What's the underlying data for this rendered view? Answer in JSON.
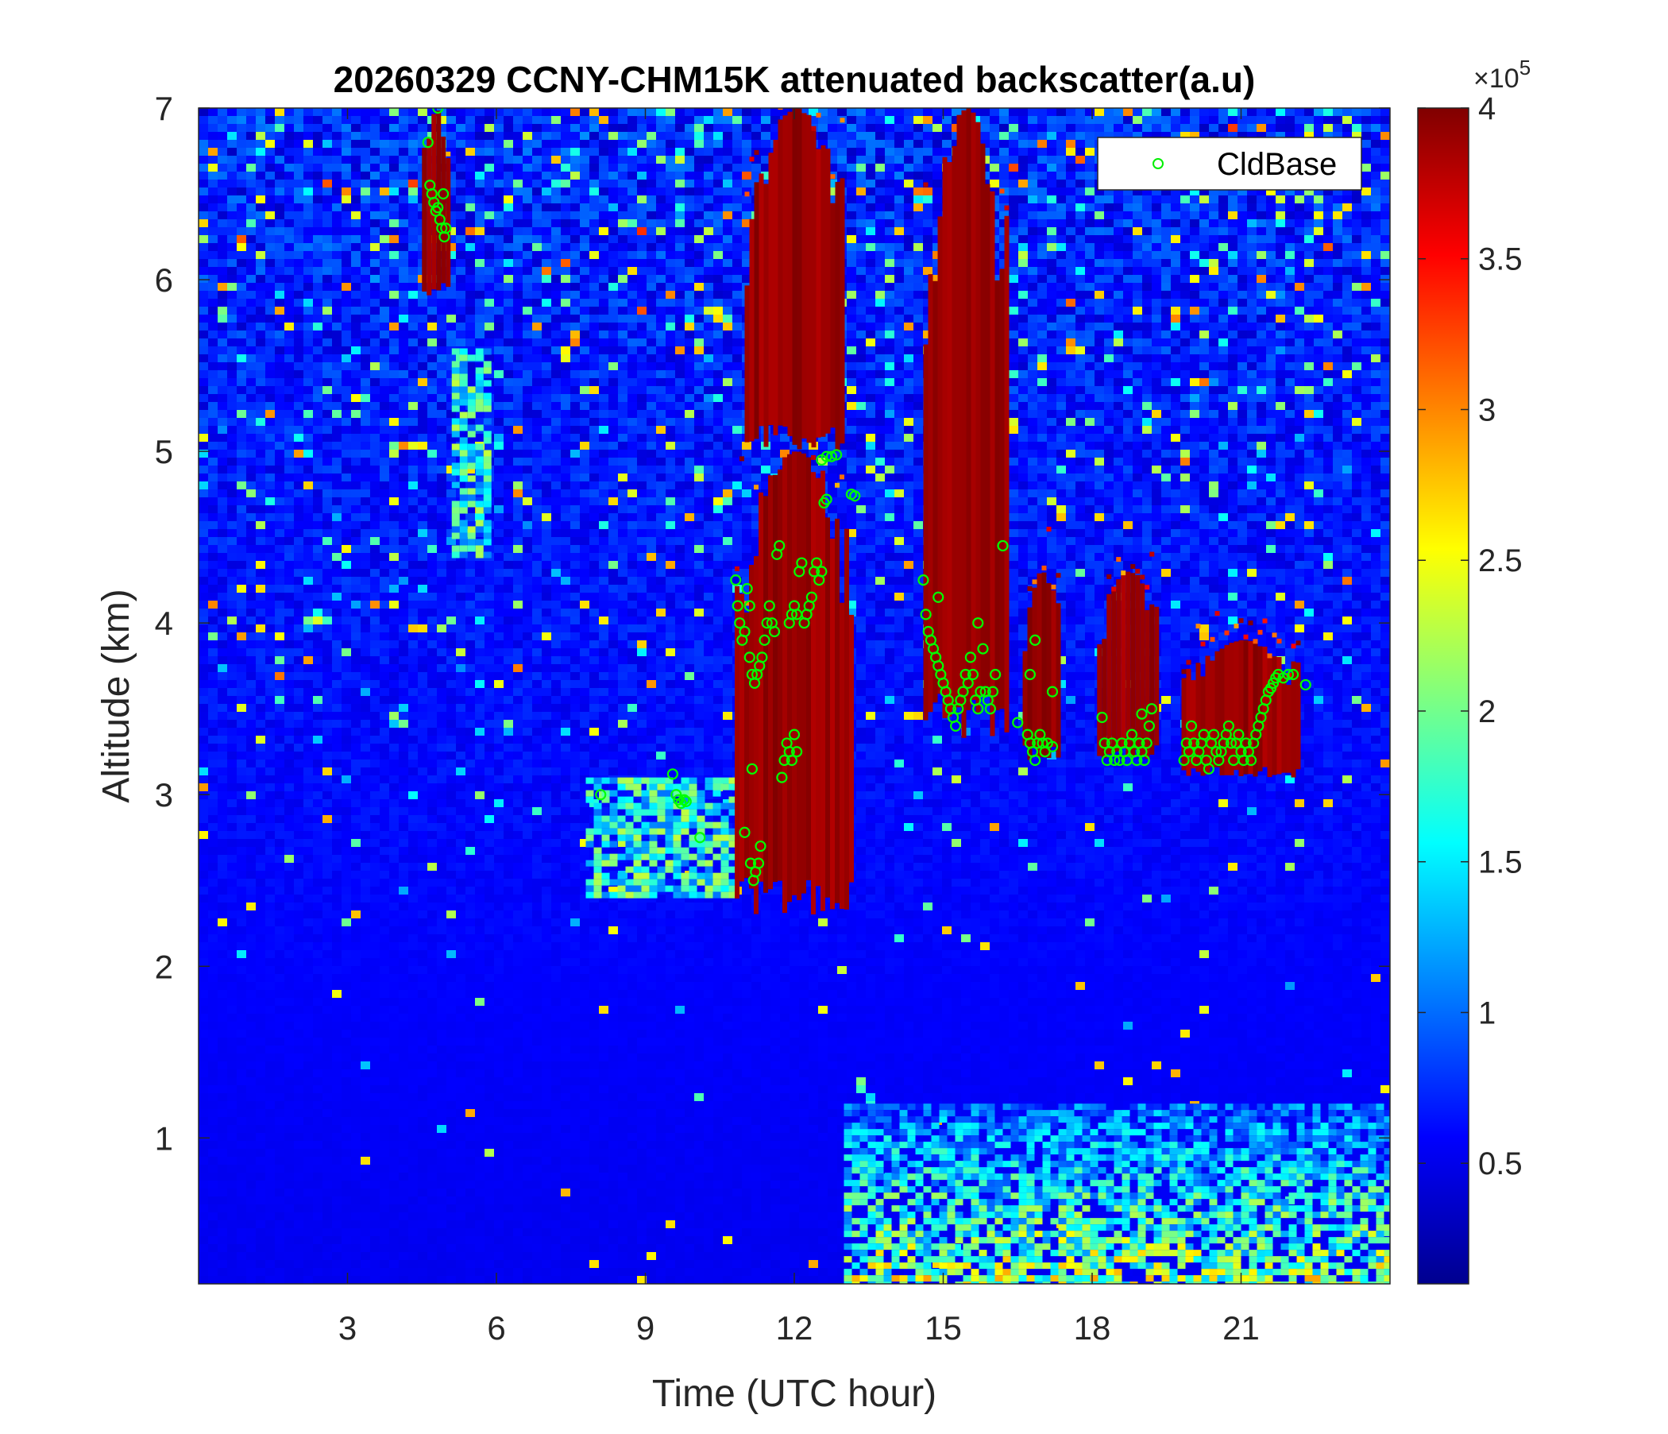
{
  "chart_data": {
    "type": "heatmap",
    "title": "20260329 CCNY-CHM15K attenuated backscatter(a.u)",
    "xlabel": "Time (UTC hour)",
    "ylabel": "Altitude (km)",
    "xlim": [
      0,
      24
    ],
    "ylim": [
      0.15,
      7
    ],
    "x_ticks": [
      3,
      6,
      9,
      12,
      15,
      18,
      21
    ],
    "y_ticks": [
      1,
      2,
      3,
      4,
      5,
      6,
      7
    ],
    "colorbar": {
      "colormap": "jet",
      "clim": [
        0.1,
        4
      ],
      "ticks": [
        0.5,
        1,
        1.5,
        2,
        2.5,
        3,
        3.5,
        4
      ],
      "exponent_label": "×10",
      "exponent": "5"
    },
    "legend": {
      "entries": [
        "CldBase"
      ],
      "location": "top-right"
    },
    "features": [
      {
        "name": "cirrus streak",
        "t": [
          4.5,
          5.0
        ],
        "alt": [
          5.9,
          7.0
        ],
        "level": "high"
      },
      {
        "name": "fall streak",
        "t": [
          5.1,
          5.9
        ],
        "alt": [
          4.4,
          5.6
        ],
        "level": "medium"
      },
      {
        "name": "thin layer",
        "t": [
          7.8,
          10.8
        ],
        "alt": [
          2.4,
          3.1
        ],
        "level": "medium"
      },
      {
        "name": "cloud 1",
        "t": [
          10.8,
          13.2
        ],
        "alt": [
          2.3,
          5.0
        ],
        "level": "high"
      },
      {
        "name": "upper cloud",
        "t": [
          11.0,
          13.0
        ],
        "alt": [
          5.0,
          7.0
        ],
        "level": "high"
      },
      {
        "name": "cloud 2",
        "t": [
          14.6,
          16.3
        ],
        "alt": [
          3.3,
          7.0
        ],
        "level": "high"
      },
      {
        "name": "cloud 3",
        "t": [
          16.6,
          17.3
        ],
        "alt": [
          3.2,
          4.3
        ],
        "level": "high"
      },
      {
        "name": "cloud 4",
        "t": [
          18.1,
          19.3
        ],
        "alt": [
          3.2,
          4.3
        ],
        "level": "high"
      },
      {
        "name": "cloud 5",
        "t": [
          19.8,
          22.2
        ],
        "alt": [
          3.1,
          3.9
        ],
        "level": "high"
      },
      {
        "name": "boundary layer",
        "t": [
          13.0,
          24.0
        ],
        "alt": [
          0.15,
          1.2
        ],
        "level": "medium"
      }
    ],
    "series": [
      {
        "name": "CldBase",
        "marker": "circle",
        "color": "#00ff00",
        "points": [
          [
            4.62,
            6.8
          ],
          [
            4.66,
            6.55
          ],
          [
            4.7,
            6.5
          ],
          [
            4.74,
            6.45
          ],
          [
            4.78,
            6.4
          ],
          [
            4.82,
            6.42
          ],
          [
            4.86,
            6.35
          ],
          [
            4.9,
            6.3
          ],
          [
            4.95,
            6.25
          ],
          [
            4.98,
            6.3
          ],
          [
            4.82,
            7.0
          ],
          [
            4.93,
            6.5
          ],
          [
            8.1,
            3.0
          ],
          [
            9.55,
            3.12
          ],
          [
            9.62,
            3.0
          ],
          [
            9.67,
            2.97
          ],
          [
            9.72,
            2.95
          ],
          [
            9.78,
            2.97
          ],
          [
            9.82,
            2.96
          ],
          [
            10.1,
            2.75
          ],
          [
            10.82,
            4.25
          ],
          [
            10.86,
            4.1
          ],
          [
            10.9,
            4.0
          ],
          [
            10.95,
            3.9
          ],
          [
            11.0,
            3.95
          ],
          [
            11.05,
            4.2
          ],
          [
            11.1,
            4.1
          ],
          [
            11.1,
            3.8
          ],
          [
            11.15,
            3.7
          ],
          [
            11.2,
            3.65
          ],
          [
            11.25,
            3.7
          ],
          [
            11.3,
            3.75
          ],
          [
            11.35,
            3.8
          ],
          [
            11.4,
            3.9
          ],
          [
            11.45,
            4.0
          ],
          [
            11.5,
            4.1
          ],
          [
            11.55,
            4.0
          ],
          [
            11.6,
            3.95
          ],
          [
            11.65,
            4.4
          ],
          [
            11.7,
            4.45
          ],
          [
            11.0,
            2.78
          ],
          [
            11.12,
            2.6
          ],
          [
            11.18,
            2.5
          ],
          [
            11.22,
            2.55
          ],
          [
            11.28,
            2.6
          ],
          [
            11.32,
            2.7
          ],
          [
            11.15,
            3.15
          ],
          [
            11.75,
            3.1
          ],
          [
            11.8,
            3.2
          ],
          [
            11.85,
            3.3
          ],
          [
            11.9,
            3.25
          ],
          [
            11.95,
            3.2
          ],
          [
            12.0,
            3.35
          ],
          [
            12.05,
            3.25
          ],
          [
            11.9,
            4.0
          ],
          [
            11.95,
            4.05
          ],
          [
            12.0,
            4.1
          ],
          [
            12.05,
            4.05
          ],
          [
            12.1,
            4.3
          ],
          [
            12.15,
            4.35
          ],
          [
            12.2,
            4.0
          ],
          [
            12.25,
            4.05
          ],
          [
            12.3,
            4.1
          ],
          [
            12.35,
            4.15
          ],
          [
            12.4,
            4.3
          ],
          [
            12.45,
            4.35
          ],
          [
            12.5,
            4.25
          ],
          [
            12.55,
            4.3
          ],
          [
            12.6,
            4.7
          ],
          [
            12.65,
            4.72
          ],
          [
            12.55,
            4.95
          ],
          [
            12.65,
            4.97
          ],
          [
            12.75,
            4.97
          ],
          [
            12.85,
            4.98
          ],
          [
            13.15,
            4.75
          ],
          [
            13.22,
            4.74
          ],
          [
            14.6,
            4.25
          ],
          [
            14.65,
            4.05
          ],
          [
            14.7,
            3.95
          ],
          [
            14.75,
            3.9
          ],
          [
            14.8,
            3.85
          ],
          [
            14.85,
            3.8
          ],
          [
            14.9,
            3.75
          ],
          [
            14.95,
            3.7
          ],
          [
            15.0,
            3.65
          ],
          [
            15.05,
            3.6
          ],
          [
            15.1,
            3.55
          ],
          [
            15.15,
            3.5
          ],
          [
            15.2,
            3.45
          ],
          [
            15.25,
            3.4
          ],
          [
            15.3,
            3.5
          ],
          [
            15.35,
            3.55
          ],
          [
            15.4,
            3.6
          ],
          [
            15.45,
            3.7
          ],
          [
            15.5,
            3.65
          ],
          [
            15.55,
            3.8
          ],
          [
            15.6,
            3.7
          ],
          [
            15.65,
            3.55
          ],
          [
            15.7,
            3.5
          ],
          [
            15.75,
            3.6
          ],
          [
            15.8,
            3.85
          ],
          [
            15.85,
            3.6
          ],
          [
            15.9,
            3.55
          ],
          [
            15.95,
            3.5
          ],
          [
            16.0,
            3.6
          ],
          [
            16.05,
            3.7
          ],
          [
            15.7,
            4.0
          ],
          [
            16.2,
            4.45
          ],
          [
            14.9,
            4.15
          ],
          [
            16.5,
            3.42
          ],
          [
            16.7,
            3.35
          ],
          [
            16.75,
            3.3
          ],
          [
            16.8,
            3.25
          ],
          [
            16.85,
            3.2
          ],
          [
            16.9,
            3.3
          ],
          [
            16.95,
            3.35
          ],
          [
            17.0,
            3.3
          ],
          [
            17.05,
            3.25
          ],
          [
            17.1,
            3.3
          ],
          [
            17.2,
            3.28
          ],
          [
            16.75,
            3.7
          ],
          [
            16.85,
            3.9
          ],
          [
            17.2,
            3.6
          ],
          [
            18.2,
            3.45
          ],
          [
            18.25,
            3.3
          ],
          [
            18.3,
            3.2
          ],
          [
            18.35,
            3.25
          ],
          [
            18.4,
            3.3
          ],
          [
            18.45,
            3.2
          ],
          [
            18.5,
            3.25
          ],
          [
            18.55,
            3.2
          ],
          [
            18.6,
            3.3
          ],
          [
            18.65,
            3.25
          ],
          [
            18.7,
            3.2
          ],
          [
            18.75,
            3.3
          ],
          [
            18.8,
            3.35
          ],
          [
            18.85,
            3.25
          ],
          [
            18.9,
            3.2
          ],
          [
            18.95,
            3.3
          ],
          [
            19.0,
            3.25
          ],
          [
            19.05,
            3.2
          ],
          [
            19.1,
            3.3
          ],
          [
            19.15,
            3.4
          ],
          [
            19.2,
            3.5
          ],
          [
            19.0,
            3.47
          ],
          [
            19.85,
            3.2
          ],
          [
            19.9,
            3.3
          ],
          [
            19.95,
            3.25
          ],
          [
            20.0,
            3.4
          ],
          [
            20.05,
            3.3
          ],
          [
            20.1,
            3.2
          ],
          [
            20.15,
            3.25
          ],
          [
            20.2,
            3.3
          ],
          [
            20.25,
            3.35
          ],
          [
            20.3,
            3.2
          ],
          [
            20.35,
            3.15
          ],
          [
            20.4,
            3.3
          ],
          [
            20.45,
            3.35
          ],
          [
            20.5,
            3.25
          ],
          [
            20.55,
            3.2
          ],
          [
            20.6,
            3.25
          ],
          [
            20.65,
            3.3
          ],
          [
            20.7,
            3.35
          ],
          [
            20.75,
            3.4
          ],
          [
            20.8,
            3.3
          ],
          [
            20.85,
            3.2
          ],
          [
            20.9,
            3.3
          ],
          [
            20.95,
            3.35
          ],
          [
            21.0,
            3.25
          ],
          [
            21.05,
            3.2
          ],
          [
            21.1,
            3.3
          ],
          [
            21.15,
            3.25
          ],
          [
            21.2,
            3.2
          ],
          [
            21.25,
            3.3
          ],
          [
            21.3,
            3.35
          ],
          [
            21.35,
            3.4
          ],
          [
            21.4,
            3.45
          ],
          [
            21.45,
            3.5
          ],
          [
            21.5,
            3.55
          ],
          [
            21.55,
            3.6
          ],
          [
            21.6,
            3.62
          ],
          [
            21.65,
            3.65
          ],
          [
            21.7,
            3.68
          ],
          [
            21.75,
            3.7
          ],
          [
            21.85,
            3.68
          ],
          [
            21.95,
            3.7
          ],
          [
            22.05,
            3.7
          ],
          [
            22.3,
            3.64
          ]
        ]
      }
    ]
  }
}
